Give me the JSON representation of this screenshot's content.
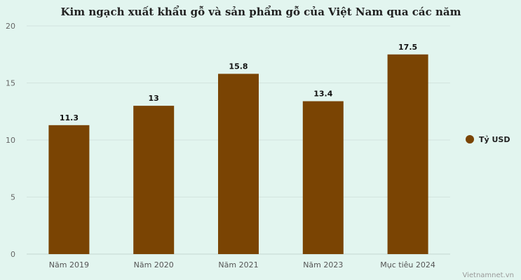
{
  "chart_data": {
    "type": "bar",
    "title": "Kim ngạch xuất khẩu gỗ và sản phẩm gỗ của Việt Nam qua các năm",
    "categories": [
      "Năm 2019",
      "Năm 2020",
      "Năm 2021",
      "Năm 2023",
      "Mục tiêu 2024"
    ],
    "series": [
      {
        "name": "Tỷ USD",
        "values": [
          11.3,
          13,
          15.8,
          13.4,
          17.5
        ],
        "color": "#7a4403"
      }
    ],
    "data_labels": [
      "11.3",
      "13",
      "15.8",
      "13.4",
      "17.5"
    ],
    "ylim": [
      0,
      20
    ],
    "yticks": [
      0,
      5,
      10,
      15,
      20
    ],
    "grid": true,
    "legend_position": "right"
  },
  "credit": "Vietnamnet.vn",
  "colors": {
    "background": "#e2f5ef",
    "bar": "#7a4403",
    "grid": "#d3e4df"
  }
}
